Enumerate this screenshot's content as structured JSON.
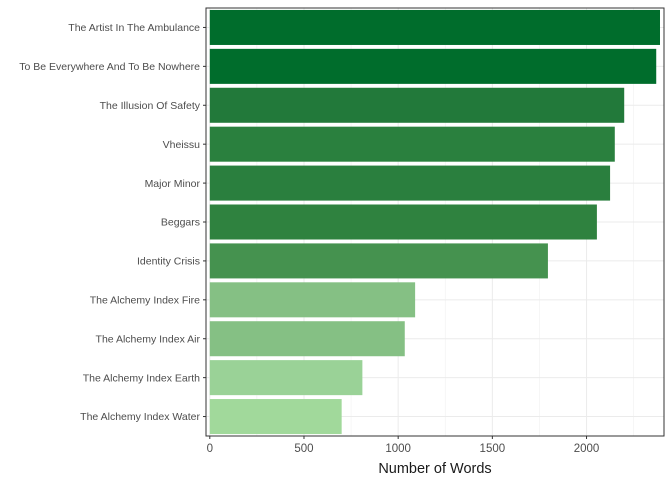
{
  "chart_data": {
    "type": "bar",
    "orientation": "horizontal",
    "title": "",
    "xlabel": "Number of Words",
    "ylabel": "",
    "xlim": [
      0,
      2400
    ],
    "xticks": [
      0,
      500,
      1000,
      1500,
      2000
    ],
    "tick_labels": [
      "0",
      "500",
      "1000",
      "1500",
      "2000"
    ],
    "grid": true,
    "legend": "none",
    "categories": [
      "The Artist In The Ambulance",
      "To Be Everywhere And To Be Nowhere",
      "The Illusion Of Safety",
      "Vheissu",
      "Major Minor",
      "Beggars",
      "Identity Crisis",
      "The Alchemy Index Fire",
      "The Alchemy Index Air",
      "The Alchemy Index Earth",
      "The Alchemy Index Water"
    ],
    "values": [
      2390,
      2370,
      2200,
      2150,
      2125,
      2055,
      1795,
      1090,
      1035,
      810,
      700
    ],
    "colors": [
      "#006d2c",
      "#006d2c",
      "#22793a",
      "#2a803e",
      "#2a7f3e",
      "#2f823f",
      "#45924f",
      "#85c084",
      "#85c084",
      "#9ad297",
      "#a1d99b"
    ]
  }
}
